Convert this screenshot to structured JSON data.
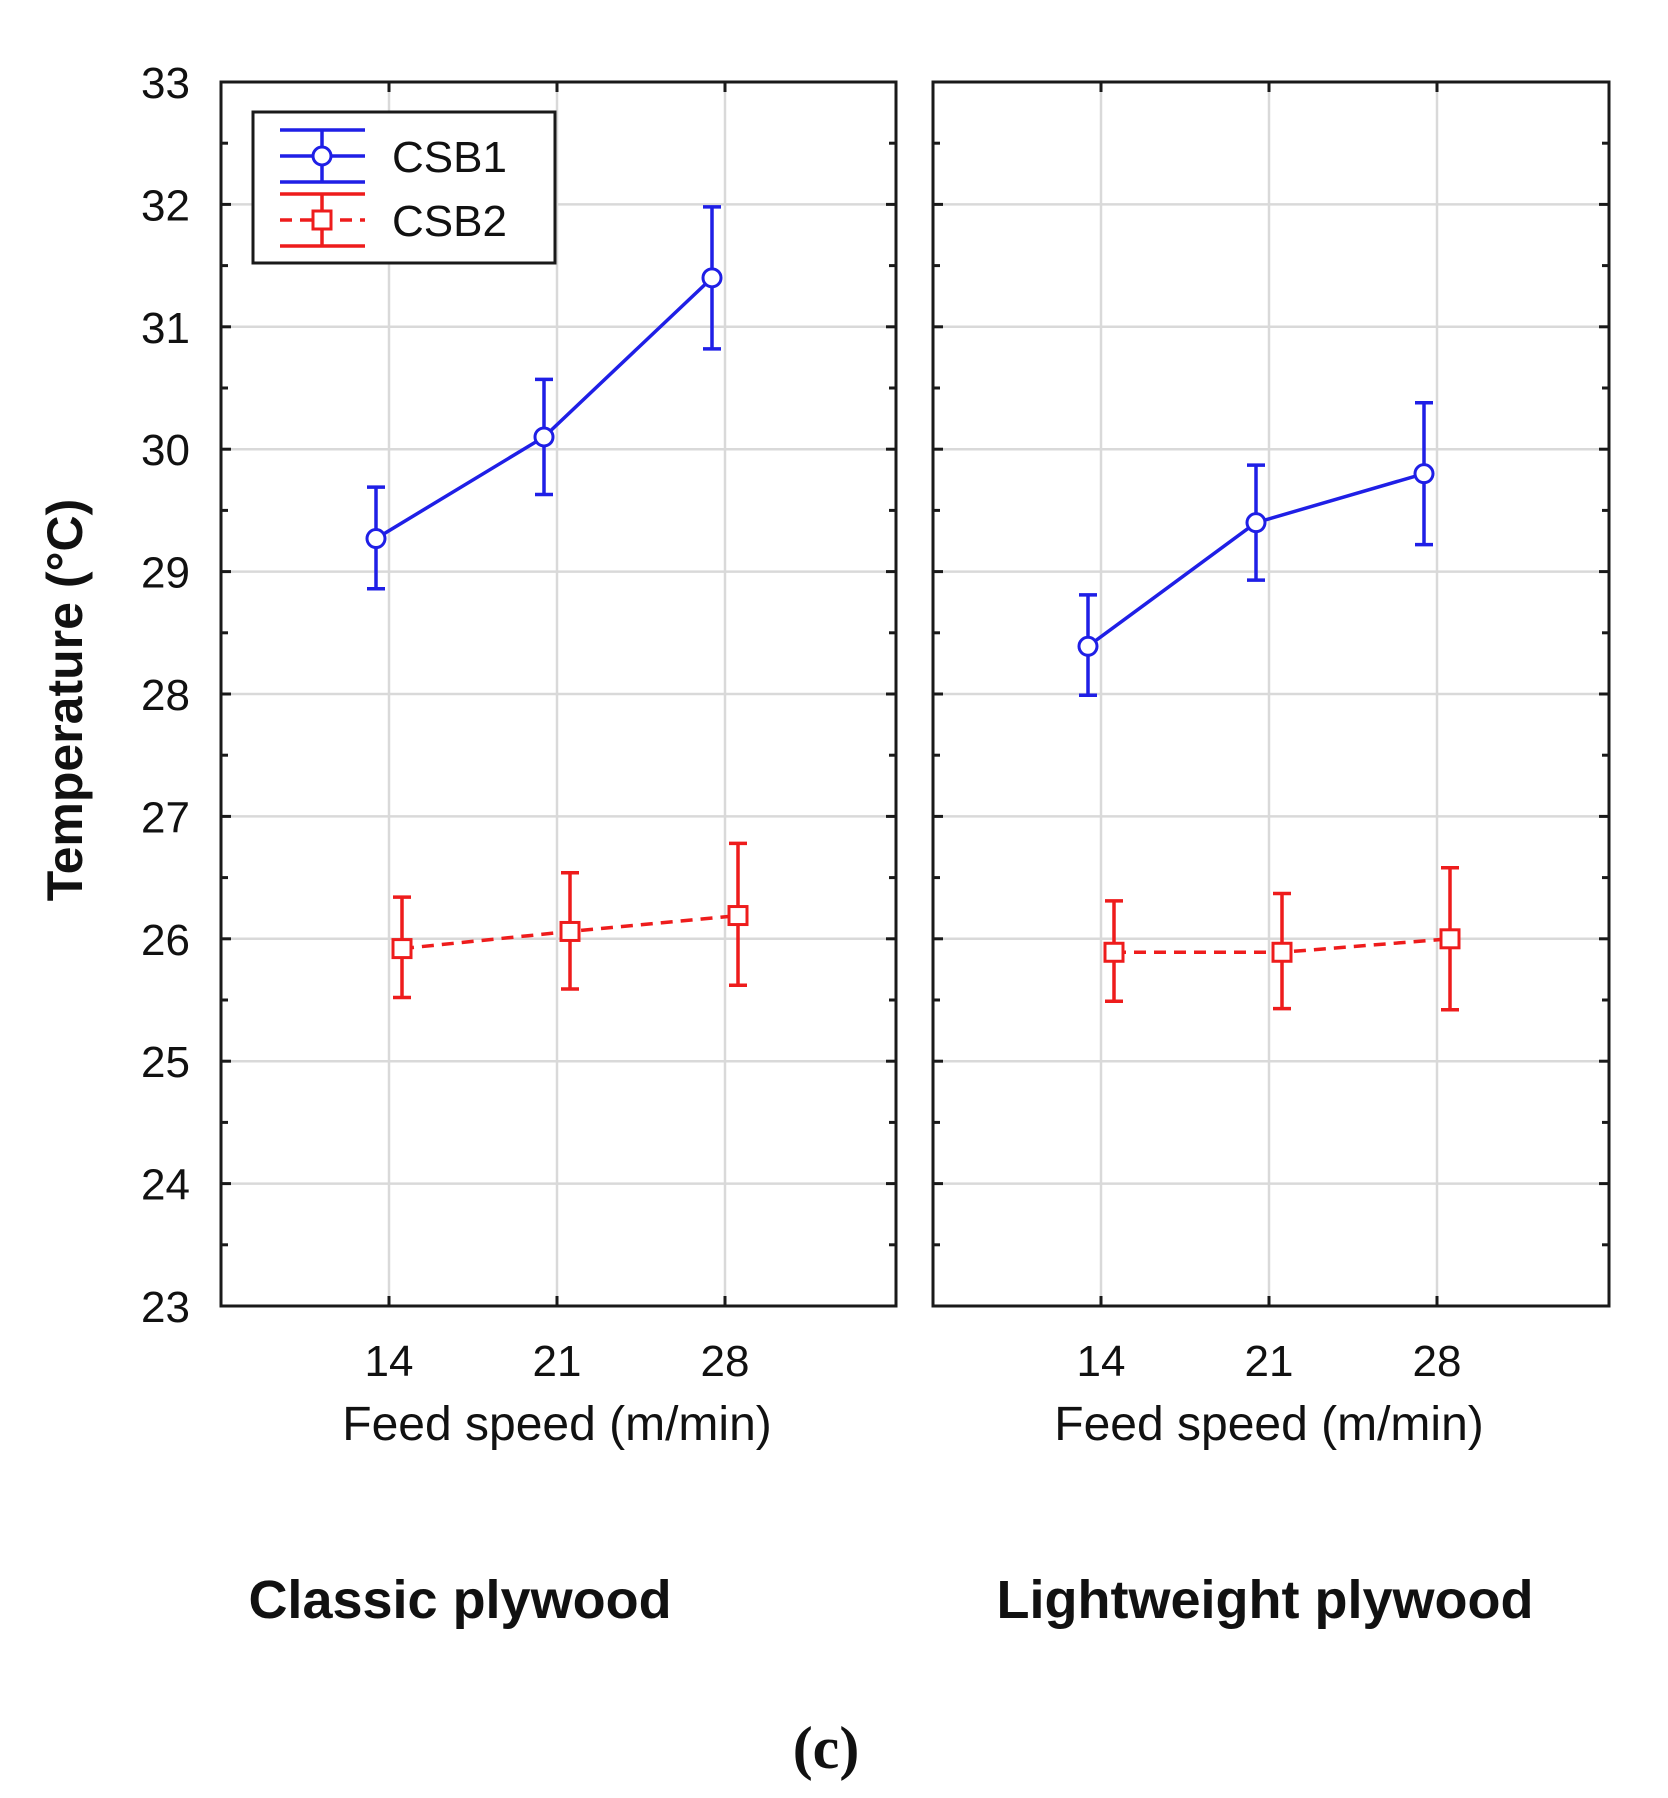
{
  "chart_data": {
    "type": "line",
    "ylabel": "Temperature (°C)",
    "ylim": [
      23,
      33
    ],
    "yticks": [
      "23",
      "24",
      "25",
      "26",
      "27",
      "28",
      "29",
      "30",
      "31",
      "32",
      "33"
    ],
    "caption": "(c)",
    "legend": {
      "placement": "top-left",
      "entries": [
        {
          "name": "CSB1",
          "color": "#1f1fe6",
          "marker": "circle",
          "dash": "solid"
        },
        {
          "name": "CSB2",
          "color": "#ee1c1c",
          "marker": "square",
          "dash": "dashed"
        }
      ]
    },
    "panels": [
      {
        "title": "Classic plywood",
        "xlabel": "Feed speed (m/min)",
        "categories": [
          "14",
          "21",
          "28"
        ],
        "series": [
          {
            "name": "CSB1",
            "values": [
              29.27,
              30.1,
              31.4
            ],
            "err_low": [
              28.86,
              29.63,
              30.82
            ],
            "err_high": [
              29.69,
              30.57,
              31.98
            ]
          },
          {
            "name": "CSB2",
            "values": [
              25.92,
              26.06,
              26.19
            ],
            "err_low": [
              25.52,
              25.59,
              25.62
            ],
            "err_high": [
              26.34,
              26.54,
              26.78
            ]
          }
        ]
      },
      {
        "title": "Lightweight plywood",
        "xlabel": "Feed speed (m/min)",
        "categories": [
          "14",
          "21",
          "28"
        ],
        "series": [
          {
            "name": "CSB1",
            "values": [
              28.39,
              29.4,
              29.8
            ],
            "err_low": [
              27.99,
              28.93,
              29.22
            ],
            "err_high": [
              28.81,
              29.87,
              30.38
            ]
          },
          {
            "name": "CSB2",
            "values": [
              25.89,
              25.89,
              26.0
            ],
            "err_low": [
              25.49,
              25.43,
              25.42
            ],
            "err_high": [
              26.31,
              26.37,
              26.58
            ]
          }
        ]
      }
    ]
  }
}
